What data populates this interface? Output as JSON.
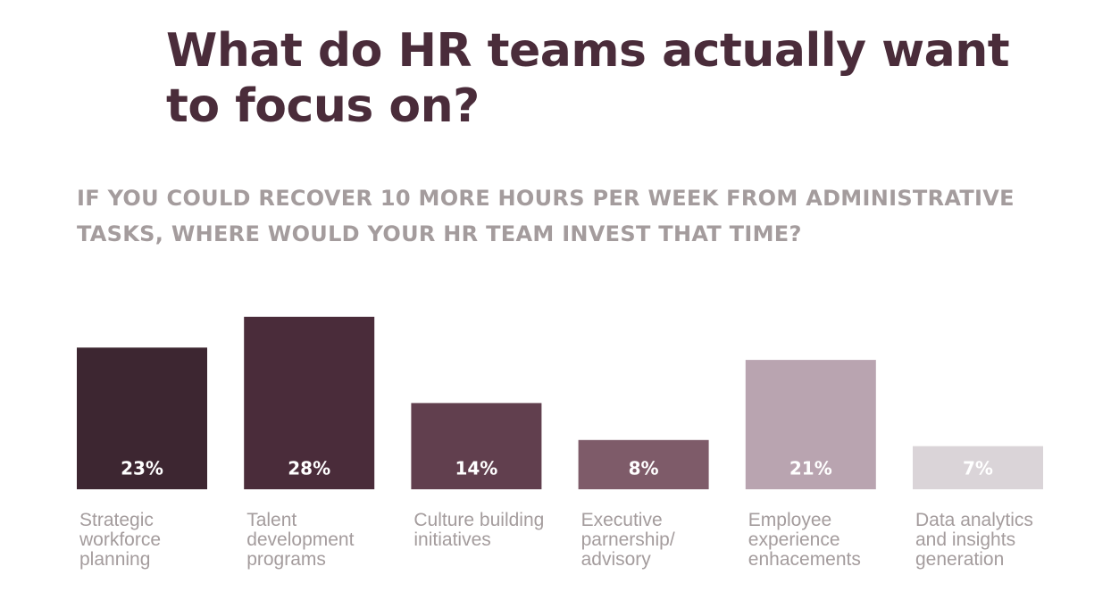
{
  "header": {
    "title": "What do HR teams actually want to focus on?",
    "subtitle": "IF YOU COULD RECOVER 10 MORE HOURS PER WEEK FROM ADMINISTRATIVE TASKS, WHERE WOULD YOUR HR TEAM INVEST THAT TIME?"
  },
  "chart_data": {
    "type": "bar",
    "categories": [
      "Strategic workforce planning",
      "Talent development programs",
      "Culture building initiatives",
      "Executive parnership/ advisory",
      "Employee experience enhacements",
      "Data analytics and insights generation"
    ],
    "values": [
      23,
      28,
      14,
      8,
      21,
      7
    ],
    "value_labels": [
      "23%",
      "28%",
      "14%",
      "8%",
      "21%",
      "7%"
    ],
    "ylim": [
      0,
      30
    ],
    "grid": false,
    "legend": "none",
    "bar_colors": [
      "#3d2631",
      "#4a2c3a",
      "#613f4e",
      "#7e5b69",
      "#b9a4b0",
      "#dad4d8"
    ],
    "label_colors": [
      "#ffffff",
      "#ffffff",
      "#ffffff",
      "#ffffff",
      "#ffffff",
      "#ffffff"
    ]
  }
}
